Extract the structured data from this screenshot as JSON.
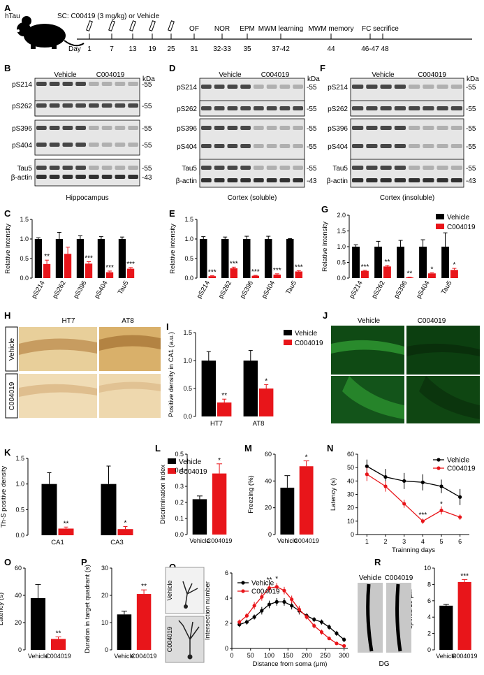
{
  "colors": {
    "vehicle": "#000000",
    "c004019": "#e8151a",
    "stain": "#c89a55",
    "green": "#1f8f1f"
  },
  "timeline": {
    "mouse_label": "hTau",
    "sc_label": "SC: C00419 (3 mg/kg) or Vehicle",
    "day_label": "Day",
    "injection_days": [
      "1",
      "7",
      "13",
      "19",
      "25"
    ],
    "tests": [
      {
        "name": "OF",
        "day": "31"
      },
      {
        "name": "NOR",
        "day": "32-33"
      },
      {
        "name": "EPM",
        "day": "35"
      },
      {
        "name": "MWM learning",
        "day": "37-42"
      },
      {
        "name": "MWM memory",
        "day": "44"
      },
      {
        "name": "FC",
        "day": "46-47"
      },
      {
        "name": "sacrifice",
        "day": "48"
      }
    ],
    "fc_sac_label": "FC secrifice"
  },
  "panel_letters": {
    "A": "A",
    "B": "B",
    "C": "C",
    "D": "D",
    "E": "E",
    "F": "F",
    "G": "G",
    "H": "H",
    "I": "I",
    "J": "J",
    "K": "K",
    "L": "L",
    "M": "M",
    "N": "N",
    "O": "O",
    "P": "P",
    "Q": "Q",
    "R": "R"
  },
  "blots": {
    "group_labels": [
      "Vehicle",
      "C004019"
    ],
    "kda": "kDa",
    "rows": [
      "pS214",
      "pS262",
      "pS396",
      "pS404",
      "Tau5",
      "β-actin"
    ],
    "marker_55": "-55",
    "marker_43": "-43",
    "captions": [
      "Hippocampus",
      "Cortex (soluble)",
      "Cortex (insoluble)"
    ]
  },
  "legend": {
    "vehicle": "Vehicle",
    "c004019": "C004019"
  },
  "histology": {
    "stains": [
      "HT7",
      "AT8"
    ],
    "row_labels": [
      "Vehicle",
      "C004019"
    ],
    "j_cols": [
      "Vehicle",
      "C004019"
    ],
    "q_rows": [
      "Vehicle",
      "C004019"
    ],
    "r_labels": [
      "Vehicle",
      "C004019"
    ],
    "r_caption": "DG"
  },
  "chart_data": [
    {
      "panel": "C",
      "type": "bar",
      "categories": [
        "pS214",
        "pS262",
        "pS396",
        "pS404",
        "Tau5"
      ],
      "ylabel": "Relative intensity",
      "ylim": [
        0,
        1.5
      ],
      "yticks": [
        0.0,
        0.5,
        1.0,
        1.5
      ],
      "series": [
        {
          "name": "Vehicle",
          "values": [
            1.0,
            1.0,
            1.0,
            1.0,
            1.0
          ],
          "err": [
            0.03,
            0.17,
            0.08,
            0.06,
            0.05
          ]
        },
        {
          "name": "C004019",
          "values": [
            0.36,
            0.62,
            0.37,
            0.15,
            0.24
          ],
          "err": [
            0.1,
            0.17,
            0.05,
            0.03,
            0.03
          ]
        }
      ],
      "sig": [
        "**",
        "",
        "***",
        "***",
        "***"
      ]
    },
    {
      "panel": "E",
      "type": "bar",
      "categories": [
        "pS214",
        "pS262",
        "pS396",
        "pS404",
        "Tau5"
      ],
      "ylabel": "Relative intensity",
      "ylim": [
        0,
        1.5
      ],
      "yticks": [
        0.0,
        0.5,
        1.0,
        1.5
      ],
      "series": [
        {
          "name": "Vehicle",
          "values": [
            1.0,
            1.0,
            1.0,
            1.0,
            1.0
          ],
          "err": [
            0.06,
            0.05,
            0.07,
            0.07,
            0.01
          ]
        },
        {
          "name": "C004019",
          "values": [
            0.05,
            0.25,
            0.06,
            0.09,
            0.17
          ],
          "err": [
            0.01,
            0.03,
            0.01,
            0.02,
            0.02
          ]
        }
      ],
      "sig": [
        "***",
        "***",
        "***",
        "***",
        "***"
      ]
    },
    {
      "panel": "G",
      "type": "bar",
      "categories": [
        "pS214",
        "pS262",
        "pS396",
        "pS404",
        "Tau5"
      ],
      "ylabel": "Relative intensity",
      "ylim": [
        0,
        2.0
      ],
      "yticks": [
        0.0,
        0.5,
        1.0,
        1.5,
        2.0
      ],
      "series": [
        {
          "name": "Vehicle",
          "values": [
            1.0,
            1.0,
            1.0,
            1.0,
            1.0
          ],
          "err": [
            0.06,
            0.17,
            0.2,
            0.22,
            0.44
          ]
        },
        {
          "name": "C004019",
          "values": [
            0.23,
            0.37,
            0.02,
            0.15,
            0.26
          ],
          "err": [
            0.02,
            0.03,
            0.01,
            0.02,
            0.05
          ]
        }
      ],
      "sig": [
        "***",
        "**",
        "**",
        "*",
        "*"
      ]
    },
    {
      "panel": "I",
      "type": "bar",
      "categories": [
        "HT7",
        "AT8"
      ],
      "ylabel": "Positive density in CA1 (a.u.)",
      "ylim": [
        0,
        1.5
      ],
      "yticks": [
        0.0,
        0.5,
        1.0,
        1.5
      ],
      "series": [
        {
          "name": "Vehicle",
          "values": [
            1.0,
            1.0
          ],
          "err": [
            0.16,
            0.18
          ]
        },
        {
          "name": "C004019",
          "values": [
            0.25,
            0.5
          ],
          "err": [
            0.06,
            0.07
          ]
        }
      ],
      "sig": [
        "**",
        "*"
      ]
    },
    {
      "panel": "K",
      "type": "bar",
      "categories": [
        "CA1",
        "CA3"
      ],
      "ylabel": "Th-S positive density",
      "ylim": [
        0,
        1.5
      ],
      "yticks": [
        0.0,
        0.5,
        1.0,
        1.5
      ],
      "series": [
        {
          "name": "Vehicle",
          "values": [
            1.0,
            1.0
          ],
          "err": [
            0.22,
            0.35
          ]
        },
        {
          "name": "C004019",
          "values": [
            0.13,
            0.12
          ],
          "err": [
            0.03,
            0.05
          ]
        }
      ],
      "sig": [
        "**",
        "*"
      ]
    },
    {
      "panel": "L",
      "type": "bar",
      "categories": [
        "Vehicle",
        "C004019"
      ],
      "ylabel": "Discrimination index",
      "ylim": [
        0,
        0.5
      ],
      "yticks": [
        0.0,
        0.1,
        0.2,
        0.3,
        0.4,
        0.5
      ],
      "values": [
        0.22,
        0.38
      ],
      "err": [
        0.02,
        0.06
      ],
      "sig": [
        "",
        "*"
      ]
    },
    {
      "panel": "M",
      "type": "bar",
      "categories": [
        "Vehicle",
        "C004019"
      ],
      "ylabel": "Freezing (%)",
      "ylim": [
        0,
        60
      ],
      "yticks": [
        0,
        20,
        40,
        60
      ],
      "values": [
        35,
        51
      ],
      "err": [
        9,
        4
      ],
      "sig": [
        "",
        "*"
      ]
    },
    {
      "panel": "N",
      "type": "line",
      "xlabel": "Trainning days",
      "ylabel": "Latency (s)",
      "x": [
        1,
        2,
        3,
        4,
        5,
        6
      ],
      "ylim": [
        0,
        60
      ],
      "yticks": [
        0,
        10,
        20,
        30,
        40,
        50,
        60
      ],
      "series": [
        {
          "name": "Vehicle",
          "values": [
            51,
            43,
            40,
            39,
            36,
            28
          ],
          "err": [
            5,
            6,
            6,
            6,
            5,
            6
          ]
        },
        {
          "name": "C004019",
          "values": [
            45,
            36,
            23,
            10,
            18,
            13
          ],
          "err": [
            5,
            4,
            3,
            2,
            3,
            2
          ]
        }
      ],
      "sig": [
        {
          "x": 4,
          "text": "***"
        },
        {
          "x": 5,
          "text": "*"
        }
      ]
    },
    {
      "panel": "O",
      "type": "bar",
      "categories": [
        "Vehicle",
        "C004019"
      ],
      "ylabel": "Latency (s)",
      "ylim": [
        0,
        60
      ],
      "yticks": [
        0,
        20,
        40,
        60
      ],
      "values": [
        38,
        8
      ],
      "err": [
        10,
        1.5
      ],
      "sig": [
        "",
        "**"
      ]
    },
    {
      "panel": "P",
      "type": "bar",
      "categories": [
        "Vehicle",
        "C004019"
      ],
      "ylabel": "Duration in target quadrant (s)",
      "ylim": [
        0,
        30
      ],
      "yticks": [
        0,
        10,
        20,
        30
      ],
      "values": [
        13,
        20.5
      ],
      "err": [
        1.2,
        1.5
      ],
      "sig": [
        "",
        "**"
      ]
    },
    {
      "panel": "Q",
      "type": "line",
      "xlabel": "Distance from soma (μm)",
      "ylabel": "Intersection number",
      "x": [
        20,
        40,
        60,
        80,
        100,
        120,
        140,
        160,
        180,
        200,
        220,
        240,
        260,
        280,
        300
      ],
      "ylim": [
        0,
        6
      ],
      "yticks": [
        0,
        2,
        4,
        6
      ],
      "xticks": [
        0,
        50,
        100,
        150,
        200,
        250,
        300
      ],
      "series": [
        {
          "name": "Vehicle",
          "values": [
            1.9,
            2.1,
            2.5,
            3.0,
            3.5,
            3.7,
            3.7,
            3.4,
            3.0,
            2.6,
            2.3,
            2.1,
            1.7,
            1.2,
            0.7
          ],
          "err": [
            0.2,
            0.2,
            0.2,
            0.3,
            0.3,
            0.3,
            0.3,
            0.3,
            0.3,
            0.2,
            0.2,
            0.2,
            0.2,
            0.2,
            0.2
          ]
        },
        {
          "name": "C004019",
          "values": [
            2.1,
            2.6,
            3.4,
            4.1,
            4.8,
            4.9,
            4.6,
            3.9,
            3.1,
            2.5,
            1.8,
            1.3,
            0.8,
            0.4,
            0.2
          ],
          "err": [
            0.2,
            0.2,
            0.3,
            0.3,
            0.3,
            0.3,
            0.3,
            0.3,
            0.3,
            0.2,
            0.2,
            0.2,
            0.1,
            0.1,
            0.1
          ]
        }
      ],
      "sig": [
        {
          "x": 100,
          "text": "**"
        },
        {
          "x": 120,
          "text": "*"
        }
      ]
    },
    {
      "panel": "R",
      "type": "bar",
      "categories": [
        "Vehicle",
        "C004019"
      ],
      "ylabel": "spines/10 μm",
      "ylim": [
        0,
        10
      ],
      "yticks": [
        0,
        2,
        4,
        6,
        8,
        10
      ],
      "values": [
        5.4,
        8.3
      ],
      "err": [
        0.15,
        0.3
      ],
      "sig": [
        "",
        "***"
      ]
    }
  ]
}
